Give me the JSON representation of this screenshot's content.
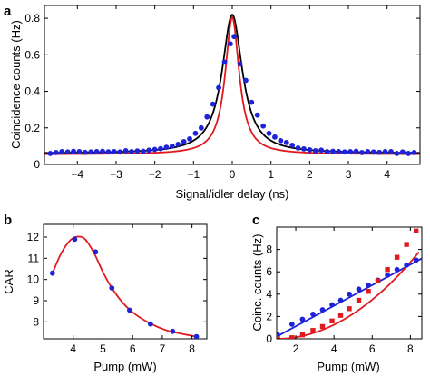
{
  "colors": {
    "black": "#000000",
    "red": "#e0191f",
    "blue": "#1f23d8"
  },
  "chart_data": [
    {
      "panel": "a",
      "type": "line",
      "xlabel": "Signal/idler delay (ns)",
      "ylabel": "Coincidence counts (Hz)",
      "xlim": [
        -4.85,
        4.85
      ],
      "ylim": [
        0,
        0.87
      ],
      "xticks": [
        -4,
        -3,
        -2,
        -1,
        0,
        1,
        2,
        3,
        4
      ],
      "xtick_labels": [
        "−4",
        "−3",
        "−2",
        "−1",
        "0",
        "1",
        "2",
        "3",
        "4"
      ],
      "yticks": [
        0,
        0.2,
        0.4,
        0.6,
        0.8
      ],
      "ytick_labels": [
        "0",
        "0.2",
        "0.4",
        "0.6",
        "0.8"
      ],
      "grid": false,
      "series": [
        {
          "kind": "scatter",
          "color": "blue",
          "x": [
            -4.7,
            -4.55,
            -4.4,
            -4.25,
            -4.1,
            -3.95,
            -3.8,
            -3.65,
            -3.5,
            -3.35,
            -3.2,
            -3.05,
            -2.9,
            -2.75,
            -2.6,
            -2.45,
            -2.3,
            -2.15,
            -2.0,
            -1.85,
            -1.7,
            -1.55,
            -1.4,
            -1.25,
            -1.1,
            -0.95,
            -0.8,
            -0.65,
            -0.5,
            -0.35,
            -0.2,
            -0.05,
            0.05,
            0.2,
            0.35,
            0.5,
            0.65,
            0.8,
            0.95,
            1.1,
            1.25,
            1.4,
            1.55,
            1.7,
            1.85,
            2.0,
            2.15,
            2.3,
            2.45,
            2.6,
            2.75,
            2.9,
            3.05,
            3.2,
            3.35,
            3.5,
            3.65,
            3.8,
            3.95,
            4.1,
            4.25,
            4.4,
            4.55,
            4.7
          ],
          "y": [
            0.06,
            0.065,
            0.07,
            0.068,
            0.072,
            0.07,
            0.066,
            0.068,
            0.07,
            0.072,
            0.069,
            0.07,
            0.068,
            0.075,
            0.07,
            0.074,
            0.072,
            0.078,
            0.082,
            0.086,
            0.094,
            0.1,
            0.11,
            0.125,
            0.14,
            0.17,
            0.2,
            0.26,
            0.33,
            0.42,
            0.56,
            0.66,
            0.7,
            0.55,
            0.46,
            0.34,
            0.27,
            0.21,
            0.17,
            0.15,
            0.13,
            0.12,
            0.105,
            0.09,
            0.085,
            0.08,
            0.075,
            0.078,
            0.07,
            0.072,
            0.07,
            0.068,
            0.07,
            0.072,
            0.065,
            0.07,
            0.068,
            0.066,
            0.07,
            0.07,
            0.06,
            0.068,
            0.06,
            0.065
          ]
        },
        {
          "kind": "line",
          "color": "black",
          "model": "lorentz",
          "offset": 0.06,
          "amplitude": 0.76,
          "width": 0.32
        },
        {
          "kind": "line",
          "color": "red",
          "model": "lorentz",
          "offset": 0.055,
          "amplitude": 0.75,
          "width": 0.22
        }
      ]
    },
    {
      "panel": "b",
      "type": "line",
      "xlabel": "Pump (mW)",
      "ylabel": "CAR",
      "xlim": [
        3.0,
        8.5
      ],
      "ylim": [
        7.2,
        12.6
      ],
      "xticks": [
        4,
        5,
        6,
        7,
        8
      ],
      "xtick_labels": [
        "4",
        "5",
        "6",
        "7",
        "8"
      ],
      "yticks": [
        8,
        9,
        10,
        11,
        12
      ],
      "ytick_labels": [
        "8",
        "9",
        "10",
        "11",
        "12"
      ],
      "grid": false,
      "series": [
        {
          "kind": "scatter",
          "color": "blue",
          "x": [
            3.3,
            4.05,
            4.75,
            5.3,
            5.9,
            6.6,
            7.35,
            8.15
          ],
          "y": [
            10.3,
            11.9,
            11.3,
            9.6,
            8.55,
            7.9,
            7.55,
            7.3
          ]
        },
        {
          "kind": "line",
          "color": "red",
          "x": [
            3.3,
            3.6,
            3.9,
            4.15,
            4.4,
            4.7,
            5.0,
            5.3,
            5.7,
            6.1,
            6.6,
            7.1,
            7.6,
            8.15
          ],
          "y": [
            10.3,
            11.25,
            11.85,
            12.02,
            11.9,
            11.25,
            10.35,
            9.6,
            8.85,
            8.35,
            7.92,
            7.62,
            7.45,
            7.3
          ]
        }
      ]
    },
    {
      "panel": "c",
      "type": "line",
      "xlabel": "Pump (mW)",
      "ylabel": "Coinc. counts (Hz)",
      "xlim": [
        1.0,
        8.6
      ],
      "ylim": [
        0,
        10
      ],
      "xticks": [
        2,
        4,
        6,
        8
      ],
      "xtick_labels": [
        "2",
        "4",
        "6",
        "8"
      ],
      "yticks": [
        0,
        2,
        4,
        6,
        8
      ],
      "ytick_labels": [
        "0",
        "2",
        "4",
        "6",
        "8"
      ],
      "grid": false,
      "series": [
        {
          "kind": "scatter",
          "color": "blue",
          "marker": "circle",
          "x": [
            1.05,
            1.8,
            2.35,
            2.9,
            3.4,
            3.9,
            4.35,
            4.8,
            5.3,
            5.8,
            6.3,
            6.8,
            7.3,
            7.8,
            8.3
          ],
          "y": [
            0.35,
            1.3,
            1.75,
            2.2,
            2.6,
            3.05,
            3.45,
            4.0,
            4.45,
            4.8,
            5.25,
            5.7,
            6.2,
            6.6,
            7.05
          ]
        },
        {
          "kind": "line",
          "color": "blue",
          "x": [
            1.0,
            8.6
          ],
          "y": [
            0.2,
            7.2
          ]
        },
        {
          "kind": "scatter",
          "color": "red",
          "marker": "square",
          "x": [
            1.05,
            1.8,
            2.35,
            2.9,
            3.4,
            3.9,
            4.35,
            4.8,
            5.3,
            5.8,
            6.3,
            6.8,
            7.3,
            7.8,
            8.3
          ],
          "y": [
            0.02,
            0.1,
            0.35,
            0.75,
            1.1,
            1.6,
            2.1,
            2.7,
            3.45,
            4.25,
            5.2,
            6.2,
            7.3,
            8.45,
            9.65
          ]
        },
        {
          "kind": "line",
          "color": "red",
          "model": "quadratic",
          "x_start": 1.0,
          "x_end": 8.45,
          "coefficients": [
            0.0,
            0.0,
            0.14
          ]
        }
      ]
    }
  ]
}
